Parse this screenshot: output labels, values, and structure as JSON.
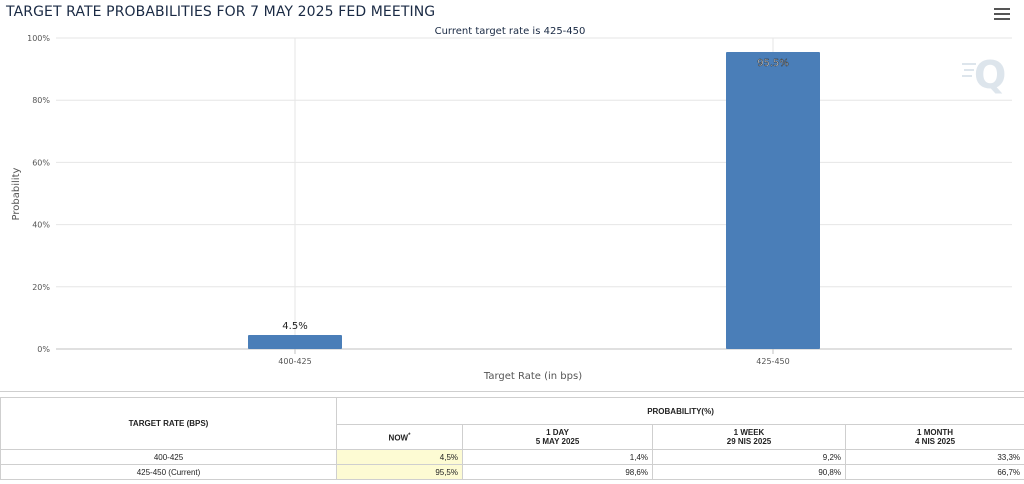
{
  "page": {
    "title": "TARGET RATE PROBABILITIES FOR 7 MAY 2025 FED MEETING",
    "menu_icon": "hamburger-menu-icon",
    "watermark_icon": "cme-q-logo-icon"
  },
  "chart_data": {
    "type": "bar",
    "title": "",
    "subtitle": "Current target rate is 425-450",
    "xlabel": "Target Rate (in bps)",
    "ylabel": "Probability",
    "categories": [
      "400-425",
      "425-450"
    ],
    "values": [
      4.5,
      95.5
    ],
    "value_labels": [
      "4.5%",
      "95.5%"
    ],
    "ylim": [
      0,
      100
    ],
    "yticks": [
      0,
      20,
      40,
      60,
      80,
      100
    ],
    "ytick_labels": [
      "0%",
      "20%",
      "40%",
      "60%",
      "80%",
      "100%"
    ],
    "grid": true,
    "bar_color": "#4a7eb8"
  },
  "table": {
    "col1_header": "TARGET RATE (BPS)",
    "group_header": "PROBABILITY(%)",
    "columns": [
      {
        "line1": "NOW",
        "line2": "",
        "sup": "*"
      },
      {
        "line1": "1 DAY",
        "line2": "5 MAY 2025",
        "sup": ""
      },
      {
        "line1": "1 WEEK",
        "line2": "29 NIS 2025",
        "sup": ""
      },
      {
        "line1": "1 MONTH",
        "line2": "4 NIS 2025",
        "sup": ""
      }
    ],
    "rows": [
      {
        "label": "400-425",
        "values": [
          "4,5%",
          "1,4%",
          "9,2%",
          "33,3%"
        ]
      },
      {
        "label": "425-450 (Current)",
        "values": [
          "95,5%",
          "98,6%",
          "90,8%",
          "66,7%"
        ]
      }
    ],
    "now_highlight_color": "#fdfbd3"
  }
}
